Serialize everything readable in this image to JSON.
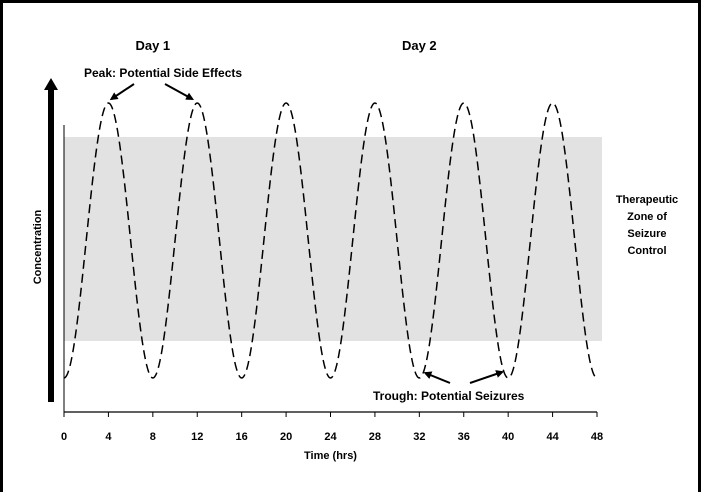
{
  "chart_data": {
    "type": "line",
    "xlabel": "Time (hrs)",
    "ylabel": "Concentration",
    "xlim": [
      0,
      48
    ],
    "xticks": [
      0,
      4,
      8,
      12,
      16,
      20,
      24,
      28,
      32,
      36,
      40,
      44,
      48
    ],
    "grid": false,
    "series": [
      {
        "style": "dashed",
        "peaks_hrs": [
          4,
          12,
          20,
          28,
          36,
          44
        ],
        "troughs_hrs": [
          8,
          16,
          24,
          32,
          40
        ]
      }
    ],
    "therapeutic_zone": {
      "label_lines": [
        "Therapeutic",
        "Zone of",
        "Seizure",
        "Control"
      ],
      "color": "#e2e2e2"
    },
    "day_labels": [
      {
        "text": "Day 1",
        "at_hrs": 8
      },
      {
        "text": "Day 2",
        "at_hrs": 32
      }
    ],
    "annotations": {
      "peak": {
        "text": "Peak: Potential Side Effects",
        "points_to_hrs": [
          4,
          12
        ]
      },
      "trough": {
        "text": "Trough: Potential Seizures",
        "points_to_hrs": [
          32,
          40
        ]
      }
    }
  }
}
